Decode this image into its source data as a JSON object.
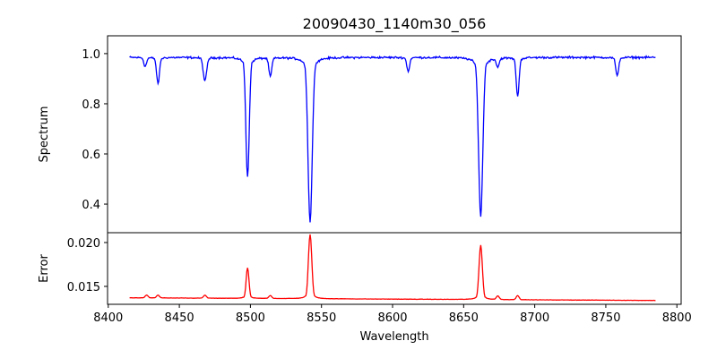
{
  "chart_data": [
    {
      "type": "line",
      "title": "20090430_1140m30_056",
      "xlabel": "",
      "ylabel": "Spectrum",
      "xlim": [
        8399.5,
        8803
      ],
      "ylim": [
        0.286,
        1.071
      ],
      "x_range": [
        8415,
        8785
      ],
      "color": "#0000ff",
      "continuum": 0.985,
      "noise": 0.012,
      "yticks": [
        "0.4",
        "0.6",
        "0.8",
        "1.0"
      ],
      "ytick_values": [
        0.4,
        0.6,
        0.8,
        1.0
      ],
      "features": [
        {
          "center": 8426,
          "value": 0.95,
          "width": 1.0
        },
        {
          "center": 8435,
          "value": 0.88,
          "width": 1.0
        },
        {
          "center": 8468,
          "value": 0.89,
          "width": 1.2
        },
        {
          "center": 8498,
          "value": 0.51,
          "width": 1.2
        },
        {
          "center": 8514,
          "value": 0.91,
          "width": 1.0
        },
        {
          "center": 8542,
          "value": 0.33,
          "width": 1.5
        },
        {
          "center": 8611,
          "value": 0.93,
          "width": 1.0
        },
        {
          "center": 8662,
          "value": 0.35,
          "width": 1.5
        },
        {
          "center": 8674,
          "value": 0.95,
          "width": 1.0
        },
        {
          "center": 8688,
          "value": 0.83,
          "width": 1.0
        },
        {
          "center": 8758,
          "value": 0.91,
          "width": 1.0
        }
      ]
    },
    {
      "type": "line",
      "xlabel": "Wavelength",
      "ylabel": "Error",
      "xlim": [
        8399.5,
        8803
      ],
      "ylim": [
        0.01296,
        0.02112
      ],
      "x_range": [
        8415,
        8785
      ],
      "color": "#ff0000",
      "continuum_start": 0.0137,
      "continuum_end": 0.0134,
      "noise": 5e-05,
      "yticks": [
        "0.015",
        "0.020"
      ],
      "ytick_values": [
        0.015,
        0.02
      ],
      "xticks": [
        "8400",
        "8450",
        "8500",
        "8550",
        "8600",
        "8650",
        "8700",
        "8750",
        "8800"
      ],
      "xtick_values": [
        8400,
        8450,
        8500,
        8550,
        8600,
        8650,
        8700,
        8750,
        8800
      ],
      "features": [
        {
          "center": 8427,
          "value": 0.014,
          "width": 1.0
        },
        {
          "center": 8435,
          "value": 0.014,
          "width": 1.0
        },
        {
          "center": 8468,
          "value": 0.014,
          "width": 1.0
        },
        {
          "center": 8498,
          "value": 0.0171,
          "width": 1.0
        },
        {
          "center": 8514,
          "value": 0.01395,
          "width": 1.0
        },
        {
          "center": 8542,
          "value": 0.0209,
          "width": 1.2
        },
        {
          "center": 8662,
          "value": 0.0197,
          "width": 1.2
        },
        {
          "center": 8674,
          "value": 0.0139,
          "width": 1.0
        },
        {
          "center": 8688,
          "value": 0.01395,
          "width": 1.0
        }
      ]
    }
  ]
}
